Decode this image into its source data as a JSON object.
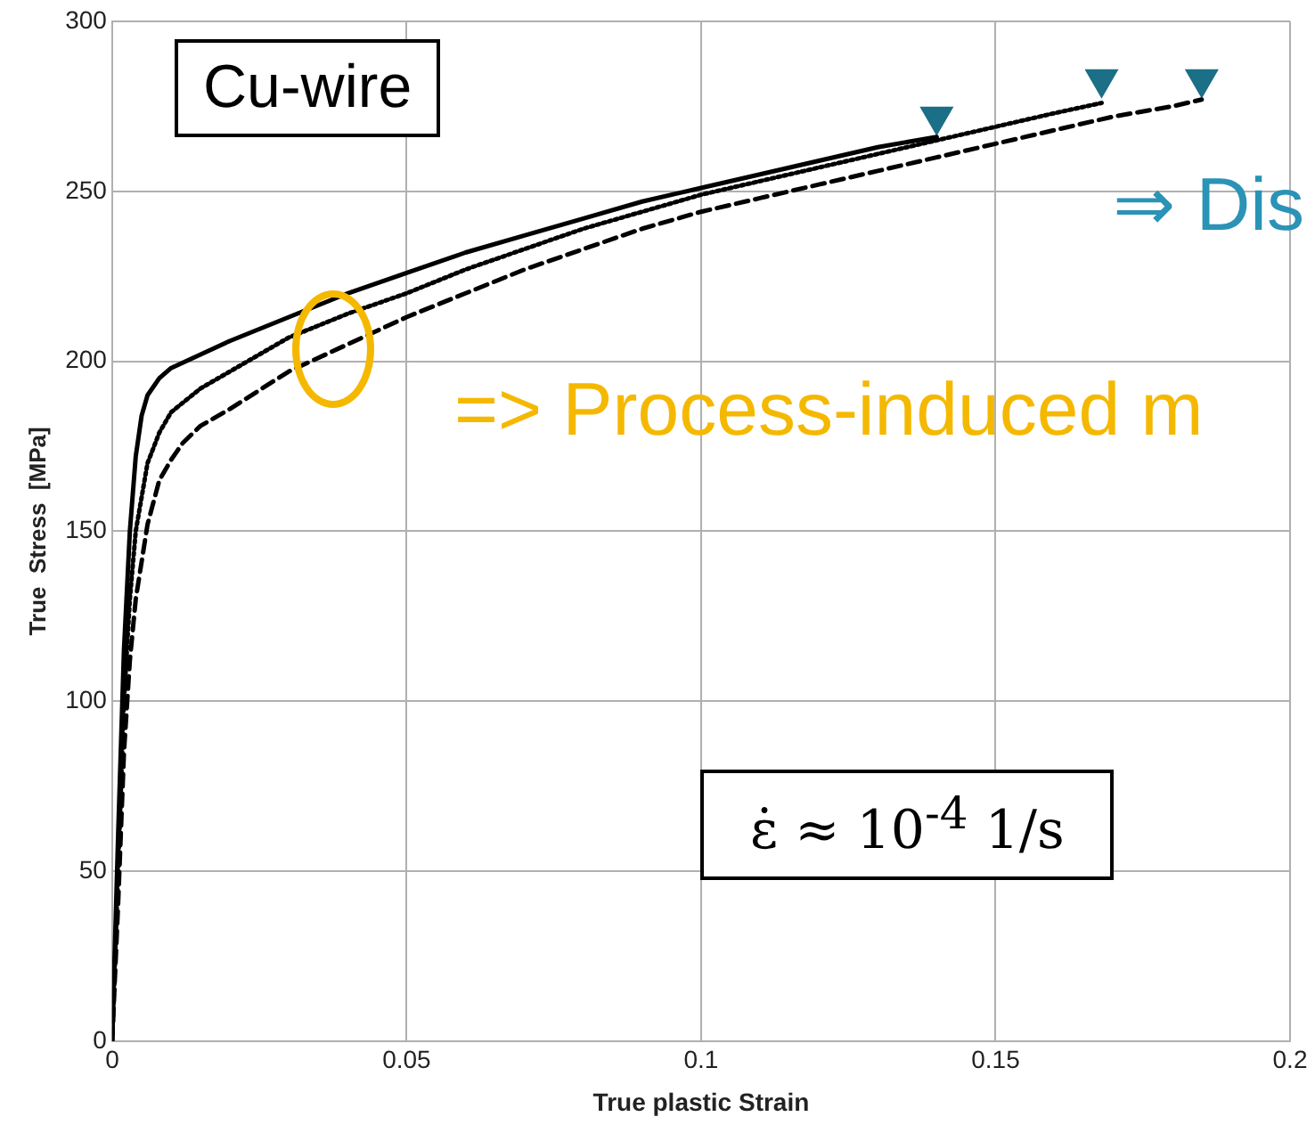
{
  "chart_data": {
    "type": "line",
    "xlabel": "True plastic Strain",
    "ylabel": "True  Stress  [MPa]",
    "xlim": [
      0,
      0.2
    ],
    "xticks": [
      0,
      0.05,
      0.1,
      0.15,
      0.2
    ],
    "ylim": [
      0,
      300
    ],
    "yticks": [
      0,
      50,
      100,
      150,
      200,
      250,
      300
    ],
    "grid": true,
    "legend": false,
    "marker": "none",
    "annotations": [
      "Cu-wire",
      "⇒ Dis",
      "=> Process-induced m",
      "ε̇ ≈ 10$^{-4}$ 1/s"
    ],
    "series": [
      {
        "color": "#000000",
        "line_style": "solid",
        "x": [
          0,
          0.001,
          0.002,
          0.003,
          0.004,
          0.005,
          0.006,
          0.008,
          0.01,
          0.015,
          0.02,
          0.03,
          0.04,
          0.05,
          0.06,
          0.07,
          0.08,
          0.09,
          0.1,
          0.11,
          0.12,
          0.13,
          0.14
        ],
        "values": [
          0,
          60,
          115,
          150,
          172,
          184,
          190,
          195,
          198,
          202,
          206,
          213,
          220,
          226,
          232,
          237,
          242,
          247,
          251,
          255,
          259,
          263,
          266
        ]
      },
      {
        "color": "#000000",
        "line_style": "dotted",
        "x": [
          0,
          0.001,
          0.002,
          0.003,
          0.004,
          0.006,
          0.008,
          0.01,
          0.015,
          0.02,
          0.03,
          0.04,
          0.05,
          0.06,
          0.07,
          0.08,
          0.09,
          0.1,
          0.11,
          0.12,
          0.13,
          0.14,
          0.15,
          0.16,
          0.168
        ],
        "values": [
          0,
          50,
          100,
          130,
          150,
          170,
          179,
          185,
          192,
          197,
          207,
          214,
          220,
          227,
          233,
          239,
          244,
          249,
          253,
          257,
          261,
          265,
          269,
          273,
          276
        ]
      },
      {
        "color": "#000000",
        "line_style": "dashed",
        "x": [
          0,
          0.001,
          0.002,
          0.003,
          0.004,
          0.006,
          0.008,
          0.01,
          0.012,
          0.015,
          0.02,
          0.03,
          0.04,
          0.05,
          0.06,
          0.07,
          0.08,
          0.09,
          0.1,
          0.11,
          0.12,
          0.13,
          0.14,
          0.15,
          0.16,
          0.17,
          0.18,
          0.185
        ],
        "values": [
          0,
          40,
          85,
          112,
          130,
          152,
          165,
          171,
          176,
          181,
          186,
          197,
          205,
          213,
          220,
          227,
          233,
          239,
          244,
          248,
          252,
          256,
          260,
          264,
          268,
          272,
          275,
          277
        ]
      },
      {
        "type": "scatter",
        "color": "#1b6f86",
        "marker": "triangle",
        "x": [
          0.14,
          0.168,
          0.185
        ],
        "values": [
          272,
          283,
          283
        ]
      }
    ]
  }
}
